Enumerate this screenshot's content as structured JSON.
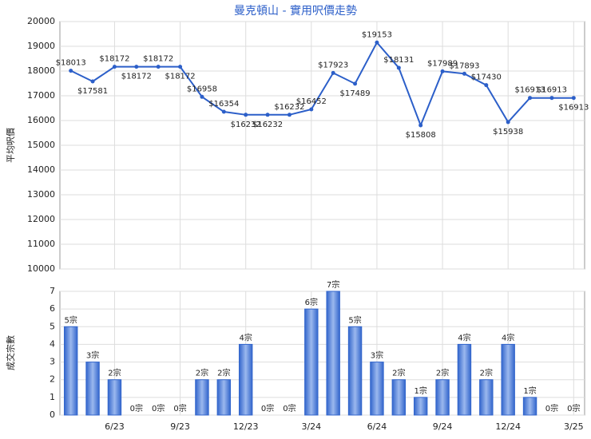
{
  "chart_data": [
    {
      "type": "line",
      "title": "曼克頓山 - 實用呎價走勢",
      "y_label": "平均呎價",
      "color": "#2c5fc9",
      "values": [
        18013,
        17581,
        18172,
        18172,
        18172,
        18172,
        16958,
        16354,
        16232,
        16232,
        16232,
        16452,
        17923,
        17489,
        19153,
        18131,
        15808,
        17989,
        17893,
        17430,
        15938,
        16913,
        16913,
        16913
      ],
      "value_labels": [
        "$18013",
        "$17581",
        "$18172",
        "$18172",
        "$18172",
        "$18172",
        "$16958",
        "$16354",
        "$16232",
        "$16232",
        "$16232",
        "$16452",
        "$17923",
        "$17489",
        "$19153",
        "$18131",
        "$15808",
        "$17989",
        "$17893",
        "$17430",
        "$15938",
        "$16913",
        "$16913",
        "$16913"
      ],
      "ylim": [
        10000,
        20000
      ],
      "yticks": [
        10000,
        11000,
        12000,
        13000,
        14000,
        15000,
        16000,
        17000,
        18000,
        19000,
        20000
      ],
      "grid": true
    },
    {
      "type": "bar",
      "y_label": "成交宗數",
      "color": "#3366cc",
      "categories": [
        null,
        null,
        "6/23",
        null,
        null,
        "9/23",
        null,
        null,
        "12/23",
        null,
        null,
        "3/24",
        null,
        null,
        "6/24",
        null,
        null,
        "9/24",
        null,
        null,
        "12/24",
        null,
        null,
        "3/25"
      ],
      "values": [
        5,
        3,
        2,
        0,
        0,
        0,
        2,
        2,
        4,
        0,
        0,
        6,
        7,
        5,
        3,
        2,
        1,
        2,
        4,
        2,
        4,
        1,
        0,
        0
      ],
      "value_labels": [
        "5宗",
        "3宗",
        "2宗",
        "0宗",
        "0宗",
        "0宗",
        "2宗",
        "2宗",
        "4宗",
        "0宗",
        "0宗",
        "6宗",
        "7宗",
        "5宗",
        "3宗",
        "2宗",
        "1宗",
        "2宗",
        "4宗",
        "2宗",
        "4宗",
        "1宗",
        "0宗",
        "0宗"
      ],
      "ylim": [
        0,
        7
      ],
      "yticks": [
        0,
        1,
        2,
        3,
        4,
        5,
        6,
        7
      ],
      "grid": true
    }
  ]
}
